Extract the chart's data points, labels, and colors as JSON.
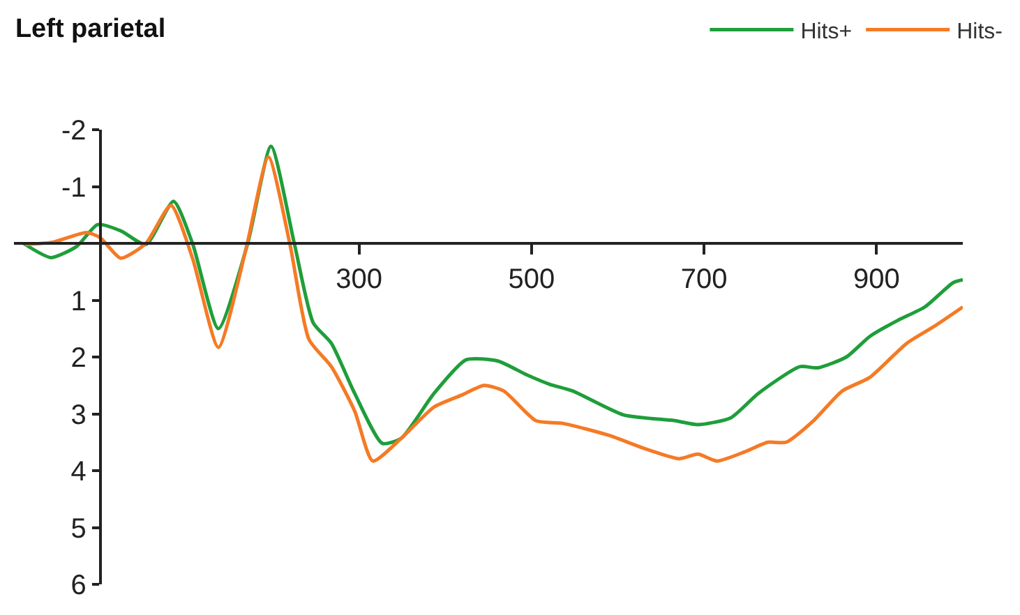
{
  "chart_data": {
    "type": "line",
    "title": "Left parietal",
    "xlim": [
      -100,
      1000
    ],
    "xticks": [
      300,
      500,
      700,
      900
    ],
    "ylim": [
      6,
      -2
    ],
    "yticks": [
      -2,
      -1,
      1,
      2,
      3,
      4,
      5,
      6
    ],
    "legend": "top right",
    "marker": "none",
    "line_style": "solid",
    "series": [
      {
        "name": "Hits+",
        "color": "#1f9e3a",
        "x": [
          -89,
          -57,
          -27,
          -3,
          24,
          53,
          85,
          107,
          137,
          171,
          198,
          225,
          247,
          268,
          295,
          327,
          349,
          387,
          424,
          461,
          494,
          521,
          548,
          607,
          666,
          693,
          731,
          763,
          811,
          832,
          865,
          892,
          924,
          956,
          989,
          1000
        ],
        "values": [
          0,
          0.25,
          0.05,
          -0.33,
          -0.22,
          0.02,
          -0.74,
          0,
          1.5,
          0,
          -1.71,
          0,
          1.4,
          1.76,
          2.64,
          3.52,
          3.43,
          2.64,
          2.05,
          2.07,
          2.31,
          2.48,
          2.6,
          3.02,
          3.12,
          3.19,
          3.07,
          2.64,
          2.17,
          2.19,
          2.0,
          1.64,
          1.36,
          1.12,
          0.69,
          0.64
        ]
      },
      {
        "name": "Hits-",
        "color": "#f57a25",
        "x": [
          -87,
          -55,
          -16,
          0,
          24,
          53,
          82,
          107,
          137,
          169,
          195,
          220,
          242,
          268,
          295,
          316,
          349,
          387,
          419,
          445,
          468,
          505,
          537,
          590,
          629,
          671,
          693,
          715,
          747,
          774,
          795,
          827,
          860,
          892,
          935,
          968,
          1000
        ],
        "values": [
          0.02,
          -0.02,
          -0.19,
          -0.1,
          0.26,
          0,
          -0.67,
          0.26,
          1.83,
          0.1,
          -1.52,
          0.02,
          1.69,
          2.17,
          2.95,
          3.83,
          3.43,
          2.88,
          2.67,
          2.5,
          2.6,
          3.12,
          3.17,
          3.38,
          3.6,
          3.79,
          3.71,
          3.83,
          3.67,
          3.5,
          3.5,
          3.12,
          2.6,
          2.36,
          1.76,
          1.45,
          1.12
        ]
      }
    ]
  }
}
